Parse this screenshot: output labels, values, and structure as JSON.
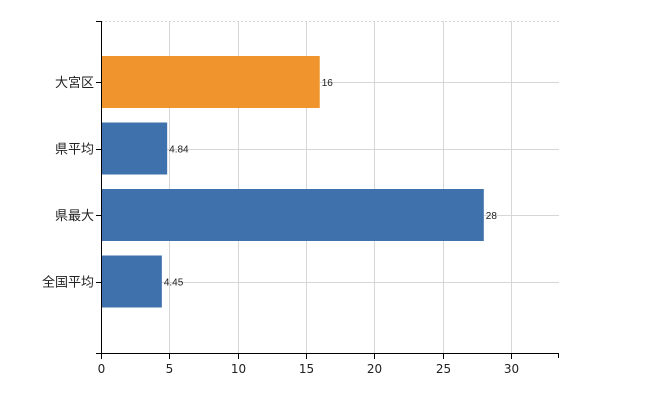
{
  "chart_data": {
    "type": "bar",
    "orientation": "horizontal",
    "categories": [
      "大宮区",
      "県平均",
      "県最大",
      "全国平均"
    ],
    "values": [
      16,
      4.84,
      28,
      4.45
    ],
    "data_labels": [
      "16",
      "4.84",
      "28",
      "4.45"
    ],
    "x_ticks": [
      0,
      5,
      10,
      15,
      20,
      25,
      30
    ],
    "xlim": [
      0,
      33.5
    ],
    "grid": true,
    "colors": [
      "#f0952e",
      "#3f72ad",
      "#3f72ad",
      "#3f72ad"
    ],
    "highlight_color": "#f0952e",
    "bar_color": "#3f72ad"
  }
}
